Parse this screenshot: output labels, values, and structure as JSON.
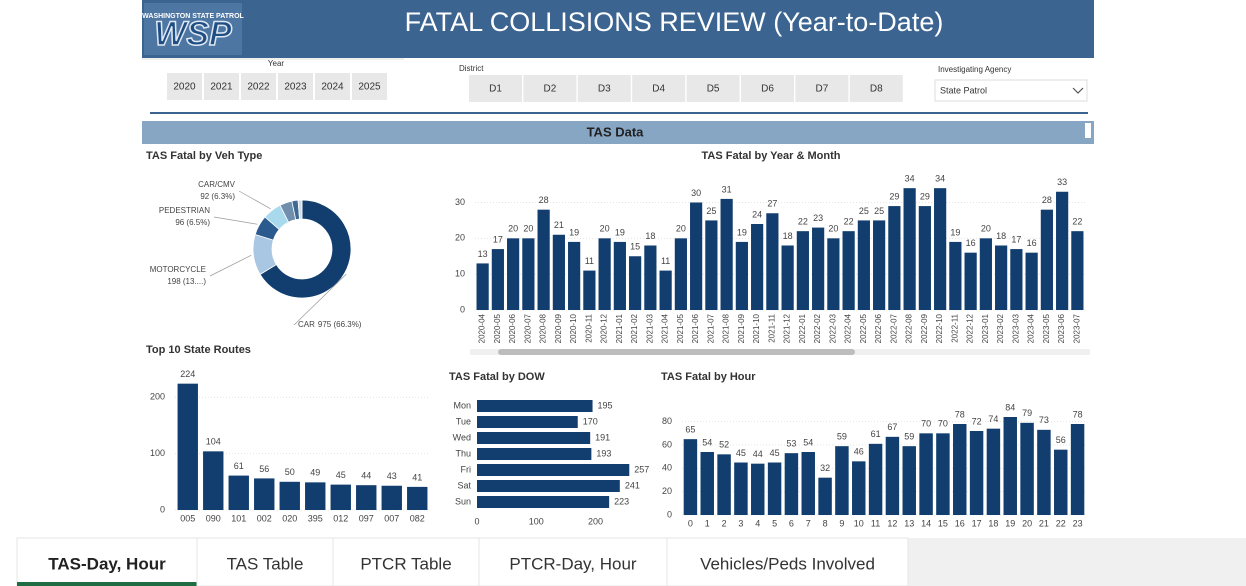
{
  "header": {
    "logo": "WSP",
    "logo_subtitle": "WASHINGTON STATE PATROL",
    "title": "FATAL COLLISIONS REVIEW (Year-to-Date)"
  },
  "filters": {
    "year": {
      "label": "Year",
      "options": [
        "2020",
        "2021",
        "2022",
        "2023",
        "2024",
        "2025"
      ]
    },
    "district": {
      "label": "District",
      "options": [
        "D1",
        "D2",
        "D3",
        "D4",
        "D5",
        "D6",
        "D7",
        "D8"
      ]
    },
    "agency": {
      "label": "Investigating Agency",
      "selected": "State Patrol"
    }
  },
  "section_title": "TAS Data",
  "chart_data": [
    {
      "type": "donut",
      "title": "TAS Fatal by Veh Type",
      "categories": [
        "CAR",
        "MOTORCYCLE",
        "PEDESTRIAN",
        "CAR/CMV",
        null,
        null,
        null
      ],
      "values": [
        975,
        198,
        96,
        92,
        60,
        30,
        19
      ],
      "value_labels": [
        "975 (66.3%)",
        "198 (13....)",
        "96 (6.5%)",
        "92 (6.3%)",
        null,
        null,
        null
      ],
      "colors": [
        "#123e6f",
        "#a9c6e2",
        "#2b5b8e",
        "#a8d9ec",
        "#6f8fad",
        "#3e6a94",
        "#cfdcea"
      ]
    },
    {
      "type": "bar",
      "title": "TAS Fatal by Year & Month",
      "categories": [
        "2020-04",
        "2020-05",
        "2020-06",
        "2020-07",
        "2020-08",
        "2020-09",
        "2020-10",
        "2020-11",
        "2020-12",
        "2021-01",
        "2021-02",
        "2021-03",
        "2021-04",
        "2021-05",
        "2021-06",
        "2021-07",
        "2021-08",
        "2021-09",
        "2021-10",
        "2021-11",
        "2021-12",
        "2022-01",
        "2022-02",
        "2022-03",
        "2022-04",
        "2022-05",
        "2022-06",
        "2022-07",
        "2022-08",
        "2022-09",
        "2022-10",
        "2022-11",
        "2022-12",
        "2023-01",
        "2023-02",
        "2023-03",
        "2023-04",
        "2023-05",
        "2023-06",
        "2023-07"
      ],
      "values": [
        13,
        17,
        20,
        20,
        28,
        21,
        19,
        11,
        20,
        19,
        15,
        18,
        11,
        20,
        30,
        25,
        31,
        19,
        24,
        27,
        18,
        22,
        23,
        20,
        22,
        25,
        25,
        29,
        34,
        29,
        34,
        19,
        16,
        20,
        18,
        17,
        16,
        28,
        33,
        22
      ],
      "color": "#123e6f",
      "ylim": [
        0,
        36
      ],
      "yticks": [
        0,
        10,
        20,
        30
      ],
      "grid": true
    },
    {
      "type": "bar",
      "title": "Top 10 State Routes",
      "categories": [
        "005",
        "090",
        "101",
        "002",
        "020",
        "395",
        "012",
        "097",
        "007",
        "082"
      ],
      "values": [
        224,
        104,
        61,
        56,
        50,
        49,
        45,
        44,
        43,
        41
      ],
      "color": "#123e6f",
      "ylim": [
        0,
        250
      ],
      "yticks": [
        0,
        100,
        200
      ],
      "grid": true
    },
    {
      "type": "hbar",
      "title": "TAS Fatal by DOW",
      "categories": [
        "Mon",
        "Tue",
        "Wed",
        "Thu",
        "Fri",
        "Sat",
        "Sun"
      ],
      "values": [
        195,
        170,
        191,
        193,
        257,
        241,
        223
      ],
      "color": "#123e6f",
      "xlim": [
        0,
        270
      ],
      "xticks": [
        0,
        100,
        200
      ]
    },
    {
      "type": "bar",
      "title": "TAS Fatal by Hour",
      "categories": [
        "0",
        "1",
        "2",
        "3",
        "4",
        "5",
        "6",
        "7",
        "8",
        "9",
        "10",
        "11",
        "12",
        "13",
        "14",
        "15",
        "16",
        "17",
        "18",
        "19",
        "20",
        "21",
        "22",
        "23"
      ],
      "values": [
        65,
        54,
        52,
        45,
        44,
        45,
        53,
        54,
        32,
        59,
        46,
        61,
        67,
        59,
        70,
        70,
        78,
        72,
        74,
        84,
        79,
        73,
        56,
        78
      ],
      "color": "#123e6f",
      "ylim": [
        0,
        90
      ],
      "yticks": [
        0,
        20,
        40,
        60,
        80
      ],
      "grid": true
    }
  ],
  "tabs": [
    "TAS-Day, Hour",
    "TAS Table",
    "PTCR Table",
    "PTCR-Day, Hour",
    "Vehicles/Peds Involved"
  ],
  "active_tab": 0
}
